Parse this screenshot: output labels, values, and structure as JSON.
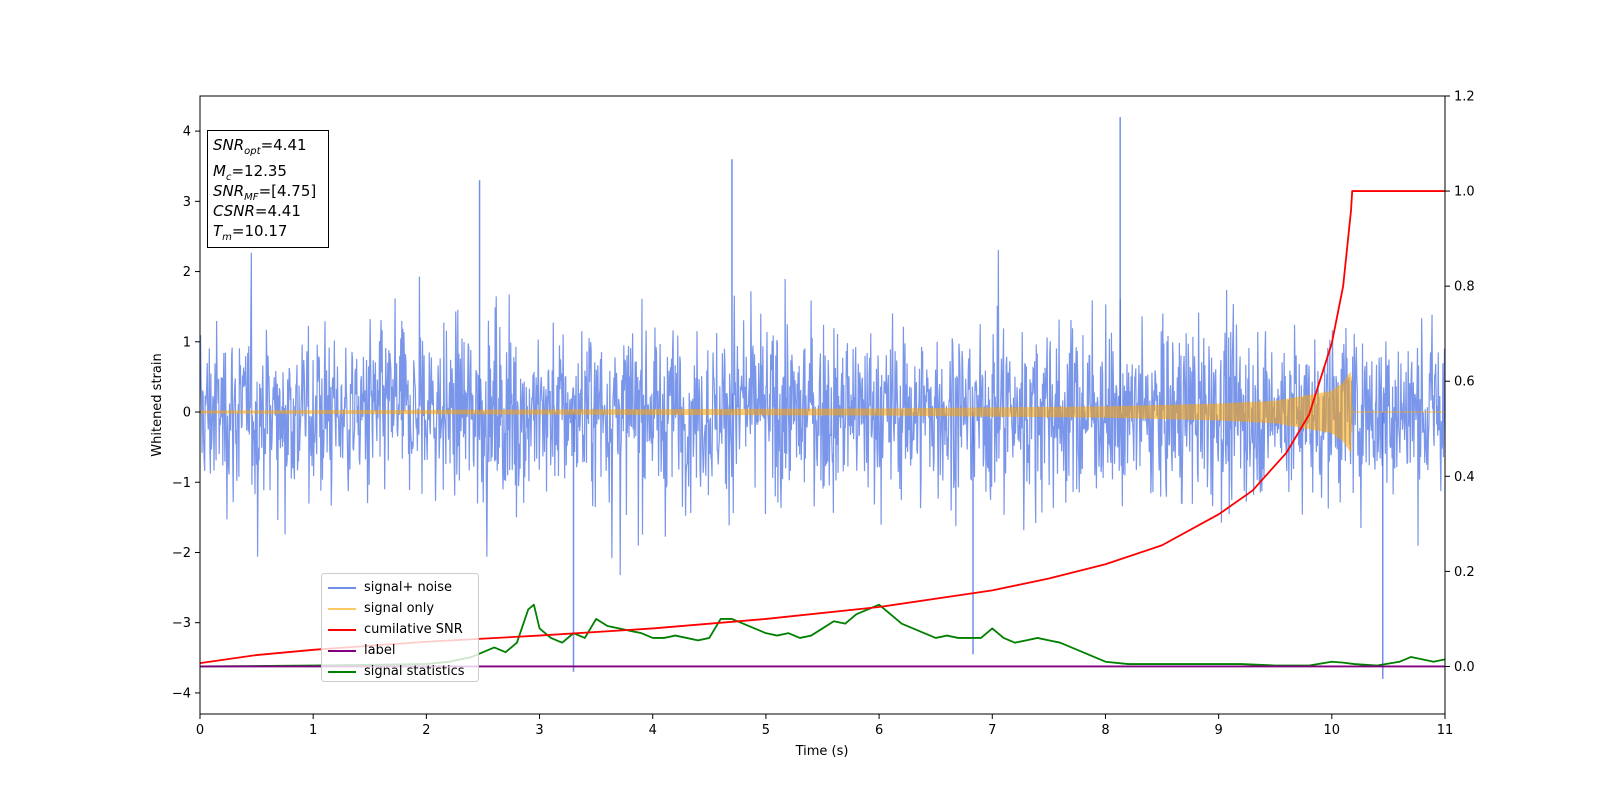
{
  "chart_data": {
    "type": "line",
    "xlabel": "Time (s)",
    "ylabel": "Whitened strain",
    "xlim": [
      0,
      11
    ],
    "ylim": [
      -4.3,
      4.5
    ],
    "y2lim": [
      -0.1,
      1.2
    ],
    "x_ticks": [
      "0",
      "1",
      "2",
      "3",
      "4",
      "5",
      "6",
      "7",
      "8",
      "9",
      "10",
      "11"
    ],
    "y_ticks": [
      "−4",
      "−3",
      "−2",
      "−1",
      "0",
      "1",
      "2",
      "3",
      "4"
    ],
    "y2_ticks": [
      "0.0",
      "0.2",
      "0.4",
      "0.6",
      "0.8",
      "1.0",
      "1.2"
    ],
    "grid": false,
    "legend_position": "lower-left",
    "annotation": {
      "snr_opt": "4.41",
      "mc": "12.35",
      "snr_mf": "[4.75]",
      "csnr": "4.41",
      "tm": "10.17"
    },
    "series": [
      {
        "name": "signal+ noise",
        "color": "#4169e1",
        "axis": "left",
        "description_values": {
          "typical_amplitude_range": [
            -2.5,
            2.5
          ],
          "peak_max": 4.2,
          "peak_min": -3.8
        }
      },
      {
        "name": "signal only",
        "color": "#ffa500",
        "axis": "left",
        "x": [
          0,
          2,
          4,
          6,
          8,
          9,
          9.5,
          10,
          10.1,
          10.17,
          10.18,
          11
        ],
        "envelope": [
          0.02,
          0.03,
          0.04,
          0.05,
          0.08,
          0.12,
          0.16,
          0.3,
          0.42,
          0.58,
          0.0,
          0.0
        ]
      },
      {
        "name": "cumilative SNR",
        "color": "#ff0000",
        "axis": "right",
        "x": [
          0,
          0.5,
          1,
          2,
          3,
          4,
          5,
          6,
          7,
          7.5,
          8,
          8.5,
          9,
          9.3,
          9.6,
          9.8,
          10,
          10.1,
          10.17,
          10.18,
          11
        ],
        "y": [
          0.007,
          0.024,
          0.035,
          0.052,
          0.065,
          0.08,
          0.1,
          0.125,
          0.16,
          0.185,
          0.215,
          0.255,
          0.32,
          0.37,
          0.45,
          0.53,
          0.68,
          0.8,
          0.96,
          1.0,
          1.0
        ]
      },
      {
        "name": "label",
        "color": "#800080",
        "axis": "right",
        "x": [
          0,
          11
        ],
        "y": [
          0.0,
          0.0
        ]
      },
      {
        "name": "signal statistics",
        "color": "#008000",
        "axis": "right",
        "x": [
          0,
          1,
          2,
          2.2,
          2.4,
          2.5,
          2.6,
          2.7,
          2.8,
          2.9,
          2.95,
          3.0,
          3.1,
          3.2,
          3.3,
          3.4,
          3.5,
          3.6,
          3.7,
          3.8,
          3.9,
          4.0,
          4.1,
          4.2,
          4.3,
          4.4,
          4.5,
          4.6,
          4.7,
          4.8,
          4.9,
          5.0,
          5.1,
          5.2,
          5.3,
          5.4,
          5.5,
          5.6,
          5.7,
          5.8,
          5.9,
          6.0,
          6.1,
          6.2,
          6.3,
          6.4,
          6.5,
          6.6,
          6.7,
          6.8,
          6.9,
          7.0,
          7.1,
          7.2,
          7.3,
          7.4,
          7.5,
          7.6,
          7.7,
          7.8,
          7.9,
          8.0,
          8.2,
          8.5,
          8.8,
          9.0,
          9.2,
          9.5,
          9.8,
          10.0,
          10.1,
          10.2,
          10.4,
          10.6,
          10.7,
          10.8,
          10.9,
          11.0
        ],
        "y": [
          0.0,
          0.002,
          0.005,
          0.01,
          0.02,
          0.03,
          0.04,
          0.03,
          0.05,
          0.12,
          0.13,
          0.08,
          0.06,
          0.05,
          0.07,
          0.06,
          0.1,
          0.085,
          0.08,
          0.075,
          0.07,
          0.06,
          0.06,
          0.065,
          0.06,
          0.055,
          0.06,
          0.1,
          0.1,
          0.09,
          0.08,
          0.07,
          0.065,
          0.07,
          0.06,
          0.065,
          0.08,
          0.095,
          0.09,
          0.11,
          0.12,
          0.13,
          0.11,
          0.09,
          0.08,
          0.07,
          0.06,
          0.065,
          0.06,
          0.06,
          0.06,
          0.08,
          0.06,
          0.05,
          0.055,
          0.06,
          0.055,
          0.05,
          0.04,
          0.03,
          0.02,
          0.01,
          0.005,
          0.005,
          0.005,
          0.005,
          0.005,
          0.002,
          0.002,
          0.01,
          0.008,
          0.005,
          0.002,
          0.01,
          0.02,
          0.015,
          0.01,
          0.015
        ]
      }
    ]
  }
}
